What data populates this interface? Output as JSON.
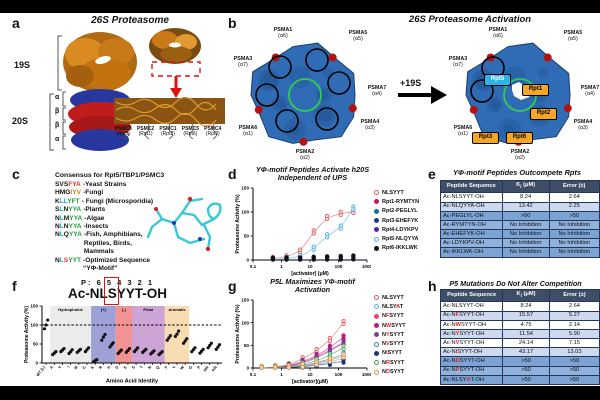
{
  "panels": {
    "a": {
      "letter": "a",
      "title": "26S Proteasome",
      "label_19s": "19S",
      "label_20s": "20S",
      "ring_labels": [
        "α",
        "β",
        "β",
        "α"
      ],
      "subunits": [
        {
          "name": "PSMC3",
          "sub": "(Rpt5)"
        },
        {
          "name": "PSMC2",
          "sub": "(Rpt1)"
        },
        {
          "name": "PSMC1",
          "sub": "(Rpt2)"
        },
        {
          "name": "PSMC5",
          "sub": "(Rpt6)"
        },
        {
          "name": "PSMC4",
          "sub": "(Rpt3)"
        }
      ]
    },
    "b": {
      "letter": "b",
      "title": "26S Proteasome Activation",
      "arrow_label": "+19S",
      "alpha_labels": [
        {
          "name": "PSMA1",
          "sub": "(α6)"
        },
        {
          "name": "PSMA5",
          "sub": "(α5)"
        },
        {
          "name": "PSMA3",
          "sub": "(α7)"
        },
        {
          "name": "PSMA7",
          "sub": "(α4)"
        },
        {
          "name": "PSMA6",
          "sub": "(α1)"
        },
        {
          "name": "PSMA2",
          "sub": "(α2)"
        },
        {
          "name": "PSMA4",
          "sub": "(α3)"
        }
      ],
      "rpt_badges": [
        {
          "label": "Rpt5",
          "bg": "#29b6e8",
          "fg": "#ffffff"
        },
        {
          "label": "Rpt1",
          "bg": "#f5a623",
          "fg": "#000000"
        },
        {
          "label": "Rpt2",
          "bg": "#f5a623",
          "fg": "#000000"
        },
        {
          "label": "Rpt6",
          "bg": "#f5a623",
          "fg": "#000000"
        },
        {
          "label": "Rpt3",
          "bg": "#f5a623",
          "fg": "#000000"
        }
      ]
    },
    "c": {
      "letter": "c",
      "heading": "Consensus for Rpt5/TBP1/PSMC3",
      "rows": [
        {
          "seq": "SVSFYA",
          "colors": "kkkrrr",
          "desc": "-Yeast Strains"
        },
        {
          "seq": "HMGIYV",
          "colors": "kkkooo",
          "desc": "-Fungi"
        },
        {
          "seq": "KLLYFT",
          "colors": "kccggg",
          "desc": "- Fungi (Microsporidia)"
        },
        {
          "seq": "SLNYYA",
          "colors": "kckggg",
          "desc": "-Plants"
        },
        {
          "seq": "NLMYYA",
          "colors": "kckggg",
          "desc": "-Algae"
        },
        {
          "seq": "NLNYYA",
          "colors": "kckggg",
          "desc": "-Insects"
        },
        {
          "seq": "NLQYYA",
          "colors": "kckggg",
          "desc": "-Fish, Amphibians,\nReptiles, Birds,\nMammals"
        },
        {
          "seq": "NLSYYT",
          "colors": "kcrggg",
          "desc": "-Optimized Sequence\n“YΦ-Motif”"
        }
      ]
    },
    "d": {
      "letter": "d",
      "title1": "YΦ-motif Peptides Activate h20S",
      "title2": "Independent of UPS"
    },
    "e": {
      "letter": "e",
      "title": "YΦ-motif Peptides Outcompete Rpts",
      "headers": [
        "Peptide Sequence",
        "Ki (μM)",
        "Error (±)"
      ],
      "rows": [
        {
          "pre": "Ac-NLSYYT-OH",
          "red": "",
          "post": "",
          "ki": "8.24",
          "err": "2.64",
          "style": "w"
        },
        {
          "pre": "Ac-NLQYYA-OH",
          "red": "",
          "post": "",
          "ki": "13.42",
          "err": "2.25",
          "style": "l"
        },
        {
          "pre": "Ac-PEGLYL-OH",
          "red": "",
          "post": "",
          "ki": ">50",
          "err": ">50",
          "style": "b1"
        },
        {
          "pre": "Ac-RYMTYN-OH",
          "red": "",
          "post": "",
          "ki": "No Inhibition",
          "err": "No Inhibition",
          "style": "b2"
        },
        {
          "pre": "Ac-EHEFYK-OH",
          "red": "",
          "post": "",
          "ki": "No Inhibition",
          "err": "No Inhibition",
          "style": "b1"
        },
        {
          "pre": "Ac-LDYKPV-OH",
          "red": "",
          "post": "",
          "ki": "No Inhibition",
          "err": "No Inhibition",
          "style": "b2"
        },
        {
          "pre": "Ac-IKKLWK-OH",
          "red": "",
          "post": "",
          "ki": "No Inhibition",
          "err": "No Inhibition",
          "style": "b1"
        }
      ]
    },
    "f": {
      "letter": "f",
      "pos_header": "P: 6 5 4 3 2 1",
      "title_pre": "Ac-N",
      "title_boxed": "L",
      "title_post": "SYYT-OH"
    },
    "g": {
      "letter": "g",
      "title1": "P5L Maximizes YΦ-motif",
      "title2": "Activation"
    },
    "h": {
      "letter": "h",
      "title": "P5 Mutations Do Not Alter Competition",
      "headers": [
        "Peptide Sequence",
        "Ki (μM)",
        "Error (±)"
      ],
      "rows": [
        {
          "pre": "Ac-NLSYYT-OH",
          "red": "",
          "post": "",
          "ki": "8.24",
          "err": "2.64",
          "style": "w"
        },
        {
          "pre": "Ac-N",
          "red": "F",
          "post": "SYYT-OH",
          "ki": "15.57",
          "err": "5.27",
          "style": "l"
        },
        {
          "pre": "Ac-N",
          "red": "W",
          "post": "SYYT-OH",
          "ki": "4.75",
          "err": "2.14",
          "style": "w"
        },
        {
          "pre": "Ac-N",
          "red": "Y",
          "post": "SYYT-OH",
          "ki": "11.54",
          "err": "5.90",
          "style": "l"
        },
        {
          "pre": "Ac-N",
          "red": "V",
          "post": "SYYT-OH",
          "ki": "24.14",
          "err": "7.15",
          "style": "w"
        },
        {
          "pre": "Ac-N",
          "red": "I",
          "post": "SYYT-OH",
          "ki": "43.17",
          "err": "13.03",
          "style": "l"
        },
        {
          "pre": "Ac-N",
          "red": "D",
          "post": "SYYT-OH",
          "ki": ">50",
          "err": ">50",
          "style": "b1"
        },
        {
          "pre": "Ac-N",
          "red": "P",
          "post": "SYYT-OH",
          "ki": ">50",
          "err": ">50",
          "style": "b2"
        },
        {
          "pre": "Ac-NLSY",
          "red": "A",
          "post": "T-OH",
          "ki": ">50",
          "err": ">50",
          "style": "b1"
        }
      ]
    }
  },
  "chart_data": [
    {
      "panel": "d",
      "type": "scatter",
      "title": "YΦ-motif Peptides Activate h20S Independent of UPS",
      "xlabel": "[activator] (μM)",
      "ylabel": "Proteasome Activity (%)",
      "xscale": "log",
      "xlim": [
        0.1,
        1000
      ],
      "ylim": [
        0,
        150
      ],
      "xticks": [
        0.1,
        1,
        10,
        100,
        1000
      ],
      "yticks": [
        0,
        50,
        100,
        150
      ],
      "x": [
        0.5,
        1.5,
        4.5,
        13.5,
        40,
        120,
        333
      ],
      "series": [
        {
          "pre": "NLSYYT",
          "red": "",
          "post": "",
          "color": "#d95f5f",
          "open": true,
          "curve": true,
          "values": [
            3,
            6,
            18,
            58,
            88,
            97,
            101
          ]
        },
        {
          "pre": "Rpt1-RYMTYN",
          "red": "",
          "post": "",
          "color": "#c2185b",
          "open": false,
          "curve": false,
          "values": [
            1,
            2,
            2,
            3,
            3,
            4,
            4
          ]
        },
        {
          "pre": "Rpt2-PEGLYL",
          "red": "",
          "post": "",
          "color": "#0e7490",
          "open": false,
          "curve": false,
          "values": [
            1,
            1,
            2,
            3,
            3,
            4,
            5
          ]
        },
        {
          "pre": "Rpt3-EHEFYK",
          "red": "",
          "post": "",
          "color": "#1e3a8a",
          "open": false,
          "curve": false,
          "values": [
            1,
            2,
            3,
            3,
            4,
            5,
            6
          ]
        },
        {
          "pre": "Rpt4-LDYKPV",
          "red": "",
          "post": "",
          "color": "#5b21b6",
          "open": false,
          "curve": false,
          "values": [
            0,
            1,
            1,
            2,
            2,
            3,
            4
          ]
        },
        {
          "pre": "Rpt5-NLQYYA",
          "red": "",
          "post": "",
          "color": "#4fb3d9",
          "open": true,
          "curve": true,
          "values": [
            1,
            3,
            7,
            24,
            50,
            68,
            108
          ]
        },
        {
          "pre": "Rpt6-IKKLWK",
          "red": "",
          "post": "",
          "color": "#111111",
          "open": false,
          "curve": false,
          "values": [
            1,
            2,
            2,
            3,
            4,
            4,
            5
          ]
        }
      ]
    },
    {
      "panel": "f",
      "type": "scatter",
      "title": "Ac-NLSYYT-OH",
      "position_header": "P: 6 5 4 3 2 1",
      "boxed_position": "5",
      "xlabel": "Amino Acid Identity",
      "ylabel": "Proteasome Activity (%)",
      "ylim": [
        0,
        150
      ],
      "yticks": [
        0,
        50,
        100,
        150
      ],
      "dashed_line": 100,
      "categories": [
        "WT (L)",
        "A",
        "V",
        "I",
        "M",
        "C",
        "K",
        "R",
        "H",
        "D",
        "E",
        "S",
        "T",
        "N",
        "Q",
        "F",
        "Y",
        "W",
        "G",
        "P",
        "Nle",
        "Aib"
      ],
      "values": [
        [
          90,
          100,
          113
        ],
        [
          22,
          26,
          30
        ],
        [
          30,
          34,
          38
        ],
        [
          25,
          30,
          35
        ],
        [
          28,
          32,
          36
        ],
        [
          30,
          35,
          40
        ],
        [
          3,
          6,
          9
        ],
        [
          60,
          68,
          75
        ],
        [
          42,
          48,
          53
        ],
        [
          25,
          30,
          34
        ],
        [
          28,
          33,
          38
        ],
        [
          30,
          35,
          40
        ],
        [
          28,
          32,
          36
        ],
        [
          24,
          28,
          32
        ],
        [
          22,
          26,
          30
        ],
        [
          60,
          66,
          72
        ],
        [
          70,
          76,
          84
        ],
        [
          52,
          58,
          64
        ],
        [
          30,
          35,
          40
        ],
        [
          26,
          31,
          36
        ],
        [
          40,
          46,
          52
        ],
        [
          36,
          42,
          48
        ]
      ],
      "regions": [
        {
          "label": "Hydrophobic",
          "from": 1,
          "to": 5,
          "color": "#e7e7e7"
        },
        {
          "label": "(+)",
          "from": 6,
          "to": 8,
          "color": "#8d90cf"
        },
        {
          "label": "(-)",
          "from": 9,
          "to": 10,
          "color": "#ef8080"
        },
        {
          "label": "Polar",
          "from": 11,
          "to": 14,
          "color": "#c394ce"
        },
        {
          "label": "Aromatic",
          "from": 15,
          "to": 17,
          "color": "#f7d7a6"
        }
      ]
    },
    {
      "panel": "g",
      "type": "scatter",
      "title": "P5L Maximizes YΦ-motif Activation",
      "xlabel": "[activator](μM)",
      "ylabel": "Proteasome Activity (%)",
      "xscale": "log",
      "xlim": [
        0.1,
        1000
      ],
      "ylim": [
        0,
        150
      ],
      "xticks": [
        0.1,
        1,
        10,
        100,
        1000
      ],
      "yticks": [
        0,
        50,
        100,
        150
      ],
      "x": [
        0.2,
        0.6,
        1.8,
        5.5,
        17,
        50,
        150
      ],
      "series": [
        {
          "pre": "NLSYYT",
          "red": "",
          "post": "",
          "color": "#d95f5f",
          "open": true,
          "curve": true,
          "values": [
            0,
            2,
            7,
            20,
            38,
            62,
            100
          ]
        },
        {
          "pre": "NLSY",
          "red": "A",
          "post": "T",
          "color": "#4fb3d9",
          "open": true,
          "curve": true,
          "values": [
            0,
            0,
            1,
            4,
            8,
            14,
            21
          ]
        },
        {
          "pre": "N",
          "red": "F",
          "post": "SYYT",
          "color": "#e8437e",
          "open": false,
          "curve": true,
          "values": [
            0,
            1,
            4,
            12,
            24,
            40,
            57
          ]
        },
        {
          "pre": "N",
          "red": "W",
          "post": "SYYT",
          "color": "#c2187a",
          "open": false,
          "curve": true,
          "values": [
            0,
            1,
            5,
            14,
            27,
            45,
            68
          ]
        },
        {
          "pre": "N",
          "red": "Y",
          "post": "SYYT",
          "color": "#7e3f9d",
          "open": false,
          "curve": true,
          "values": [
            0,
            1,
            4,
            11,
            22,
            38,
            55
          ]
        },
        {
          "pre": "N",
          "red": "V",
          "post": "SYYT",
          "color": "#3a7bc0",
          "open": true,
          "curve": true,
          "values": [
            0,
            0,
            2,
            6,
            12,
            20,
            30
          ]
        },
        {
          "pre": "N",
          "red": "I",
          "post": "SYYT",
          "color": "#24327e",
          "open": false,
          "curve": true,
          "values": [
            0,
            0,
            1,
            3,
            6,
            10,
            15
          ]
        },
        {
          "pre": "N",
          "red": "R",
          "post": "SYYT",
          "color": "#3aa04a",
          "open": true,
          "curve": true,
          "values": [
            0,
            1,
            3,
            8,
            16,
            28,
            45
          ]
        },
        {
          "pre": "N",
          "red": "D",
          "post": "SYYT",
          "color": "#e8923a",
          "open": true,
          "curve": true,
          "values": [
            0,
            0,
            2,
            5,
            10,
            17,
            26
          ]
        }
      ]
    },
    {
      "panel": "e",
      "type": "table",
      "title": "YΦ-motif Peptides Outcompete Rpts",
      "headers": [
        "Peptide Sequence",
        "Ki (μM)",
        "Error (±)"
      ]
    },
    {
      "panel": "h",
      "type": "table",
      "title": "P5 Mutations Do Not Alter Competition",
      "headers": [
        "Peptide Sequence",
        "Ki (μM)",
        "Error (±)"
      ]
    }
  ]
}
